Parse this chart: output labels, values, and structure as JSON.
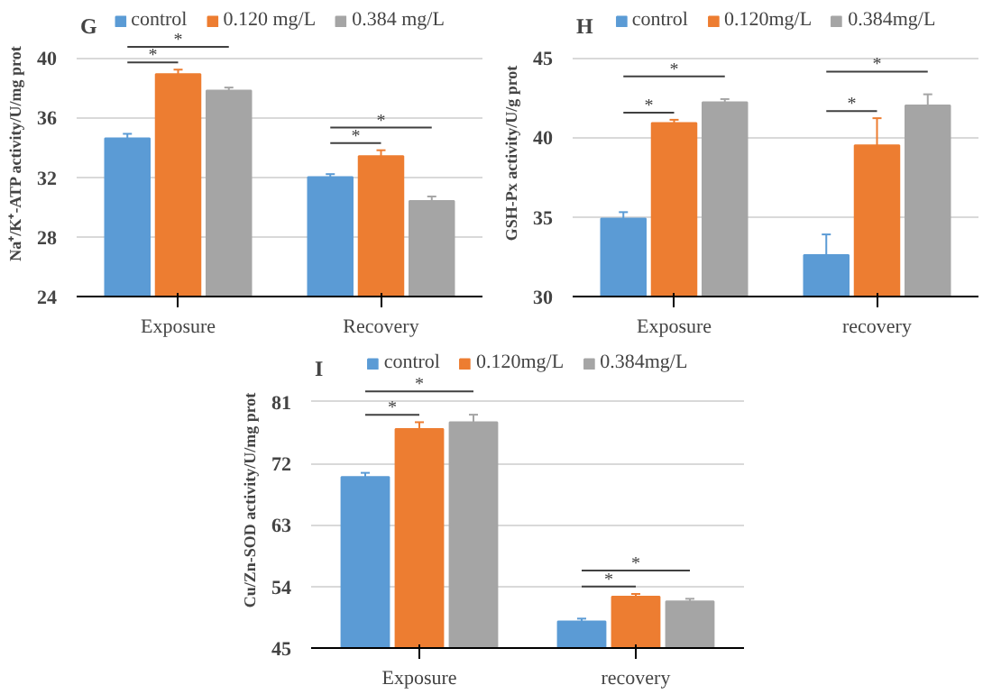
{
  "chart_data": [
    {
      "type": "bar",
      "title": "G",
      "ylabel": "Na⁺/K⁺-ATP activity/U/mg prot",
      "categories": [
        "Exposure",
        "Recovery"
      ],
      "ylim": [
        24,
        40
      ],
      "yticks": [
        24,
        28,
        32,
        36,
        40
      ],
      "grid": "y",
      "legend": "top",
      "series": [
        {
          "name": "control",
          "color": "#5b9bd5",
          "values": [
            34.6,
            32.0
          ],
          "errors": [
            0.3,
            0.2
          ]
        },
        {
          "name": "0.120 mg/L",
          "color": "#ed7d31",
          "values": [
            38.9,
            33.4
          ],
          "errors": [
            0.3,
            0.4
          ]
        },
        {
          "name": "0.384 mg/L",
          "color": "#a5a5a5",
          "values": [
            37.8,
            30.4
          ],
          "errors": [
            0.2,
            0.3
          ]
        }
      ],
      "annotations": [
        "*",
        "*",
        "*",
        "*"
      ]
    },
    {
      "type": "bar",
      "title": "H",
      "ylabel": "GSH-Px activity/U/g prot",
      "categories": [
        "Exposure",
        "recovery"
      ],
      "ylim": [
        30,
        45
      ],
      "yticks": [
        30,
        35,
        40,
        45
      ],
      "grid": "y",
      "legend": "top",
      "series": [
        {
          "name": "control",
          "color": "#5b9bd5",
          "values": [
            34.9,
            32.6
          ],
          "errors": [
            0.4,
            1.3
          ]
        },
        {
          "name": "0.120mg/L",
          "color": "#ed7d31",
          "values": [
            40.9,
            39.5
          ],
          "errors": [
            0.2,
            1.7
          ]
        },
        {
          "name": "0.384mg/L",
          "color": "#a5a5a5",
          "values": [
            42.2,
            42.0
          ],
          "errors": [
            0.2,
            0.7
          ]
        }
      ],
      "annotations": [
        "*",
        "*",
        "*",
        "*"
      ]
    },
    {
      "type": "bar",
      "title": "I",
      "ylabel": "Cu/Zn-SOD activity/U/mg prot",
      "categories": [
        "Exposure",
        "recovery"
      ],
      "ylim": [
        45,
        81
      ],
      "yticks": [
        45,
        54,
        63,
        72,
        81
      ],
      "grid": "y",
      "legend": "top",
      "series": [
        {
          "name": "control",
          "color": "#5b9bd5",
          "values": [
            70.0,
            48.9
          ],
          "errors": [
            0.6,
            0.4
          ]
        },
        {
          "name": "0.120mg/L",
          "color": "#ed7d31",
          "values": [
            77.0,
            52.5
          ],
          "errors": [
            1.0,
            0.4
          ]
        },
        {
          "name": "0.384mg/L",
          "color": "#a5a5a5",
          "values": [
            78.0,
            51.8
          ],
          "errors": [
            1.1,
            0.4
          ]
        }
      ],
      "annotations": [
        "*",
        "*",
        "*",
        "*"
      ]
    }
  ]
}
